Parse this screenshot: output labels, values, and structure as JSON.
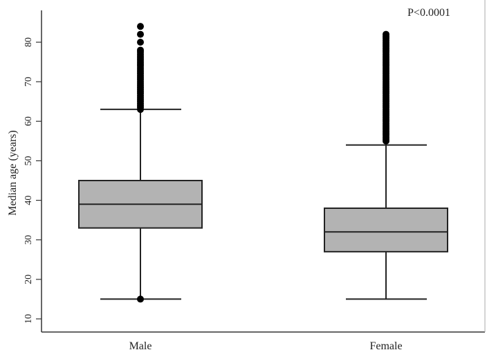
{
  "chart_data": {
    "type": "box",
    "title": "",
    "annotation": "P<0.0001",
    "xlabel": "",
    "ylabel": "Median age (years)",
    "ylim": [
      7,
      88
    ],
    "yticks": [
      10,
      20,
      30,
      40,
      50,
      60,
      70,
      80
    ],
    "ytick_labels": [
      "10",
      "20",
      "30",
      "40",
      "50",
      "60",
      "70",
      "80"
    ],
    "categories": [
      "Male",
      "Female"
    ],
    "grid": false,
    "box_fill": "#b3b3b3",
    "series": [
      {
        "name": "Male",
        "whisker_low": 15,
        "q1": 33,
        "median": 39,
        "q3": 45,
        "whisker_high": 63,
        "outliers": [
          15,
          63,
          63.5,
          64,
          64.5,
          65,
          65.5,
          66,
          66.5,
          67,
          67.5,
          68,
          68.5,
          69,
          69.5,
          70,
          70.5,
          71,
          71.5,
          72,
          72.5,
          73,
          73.5,
          74,
          74.5,
          75,
          75.5,
          76,
          76.5,
          77,
          77.5,
          78,
          80,
          82,
          84
        ]
      },
      {
        "name": "Female",
        "whisker_low": 15,
        "q1": 27,
        "median": 32,
        "q3": 38,
        "whisker_high": 54,
        "outliers": [
          55,
          55.5,
          56,
          56.5,
          57,
          57.5,
          58,
          58.5,
          59,
          59.5,
          60,
          60.5,
          61,
          61.5,
          62,
          62.5,
          63,
          63.5,
          64,
          64.5,
          65,
          65.5,
          66,
          66.5,
          67,
          67.5,
          68,
          68.5,
          69,
          69.5,
          70,
          70.5,
          71,
          71.5,
          72,
          72.5,
          73,
          73.5,
          74,
          74.5,
          75,
          75.5,
          76,
          76.5,
          77,
          77.5,
          78,
          78.5,
          79,
          79.5,
          80,
          80.5,
          81,
          81.5,
          82
        ]
      }
    ]
  }
}
